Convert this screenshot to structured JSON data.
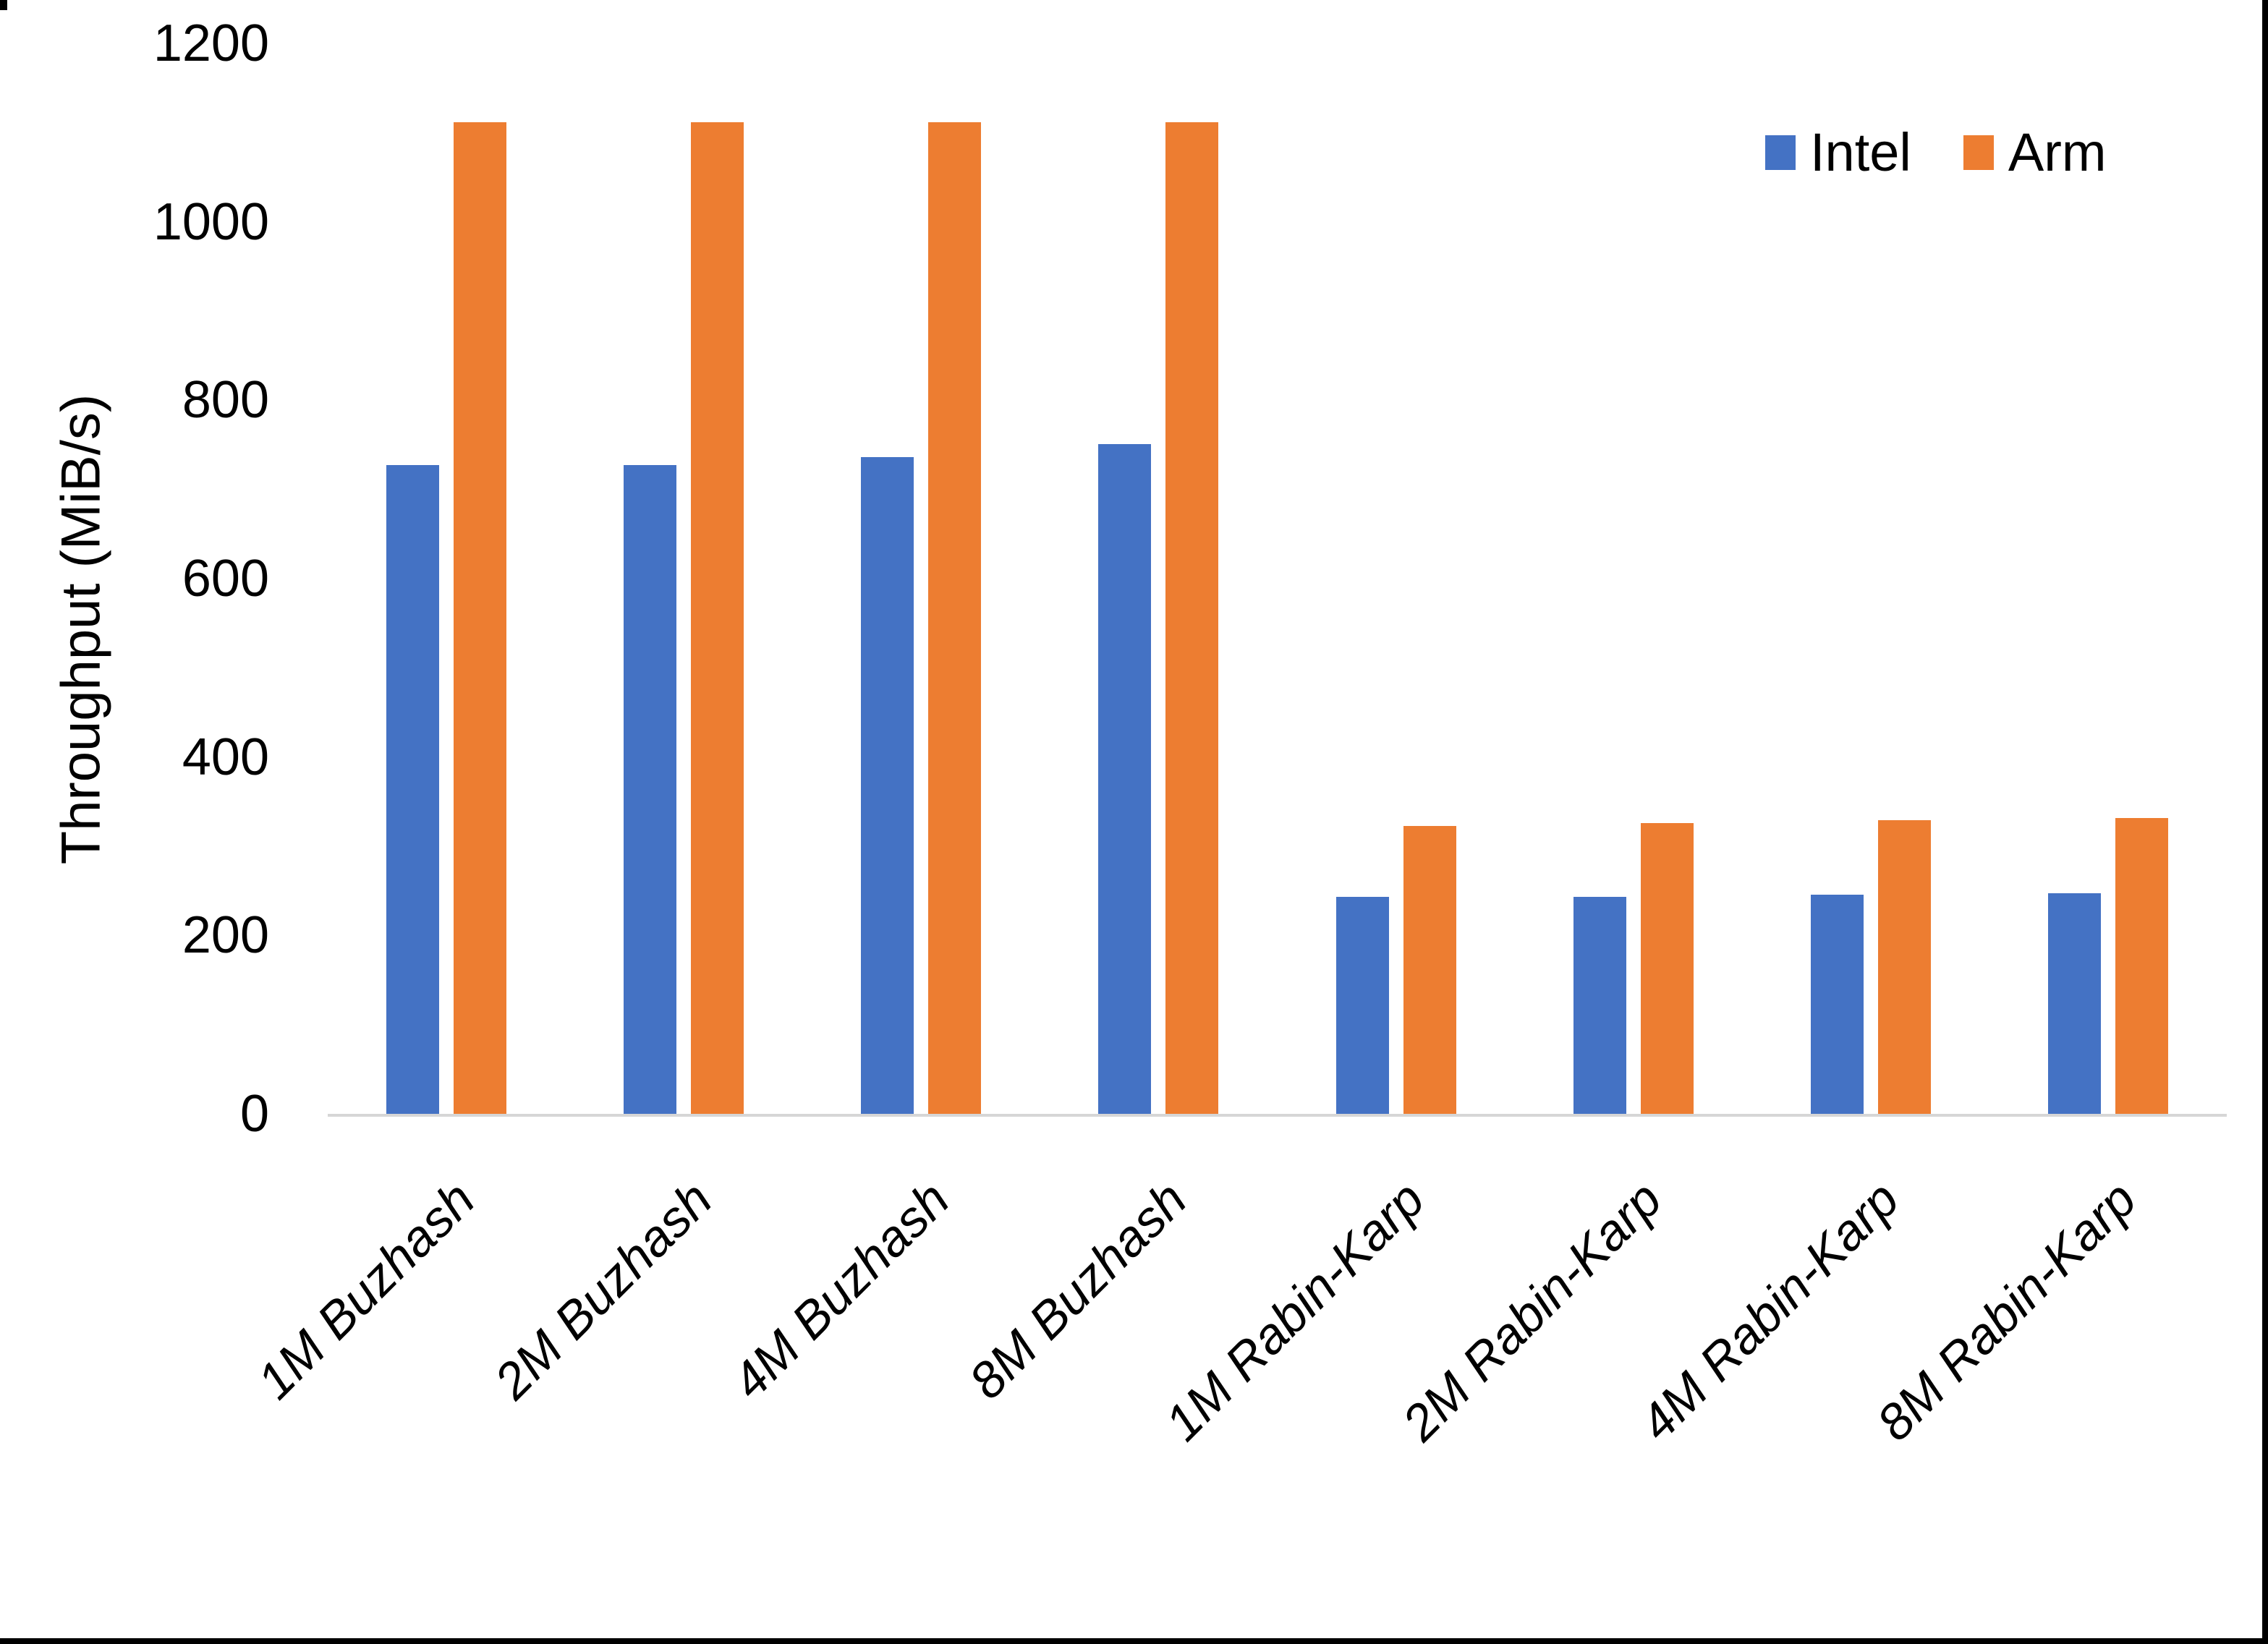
{
  "chart_data": {
    "type": "bar",
    "title": "",
    "xlabel": "",
    "ylabel": "Throughput (MiB/s)",
    "categories": [
      "1M Buzhash",
      "2M Buzhash",
      "4M Buzhash",
      "8M Buzhash",
      "1M Rabin-Karp",
      "2M Rabin-Karp",
      "4M Rabin-Karp",
      "8M Rabin-Karp"
    ],
    "series": [
      {
        "name": "Intel",
        "color": "#4472C4",
        "values": [
          727,
          727,
          736,
          751,
          243,
          243,
          246,
          247
        ]
      },
      {
        "name": "Arm",
        "color": "#ED7D31",
        "values": [
          1112,
          1112,
          1112,
          1112,
          323,
          326,
          329,
          332
        ]
      }
    ],
    "ylim": [
      0,
      1200
    ],
    "yticks": [
      0,
      200,
      400,
      600,
      800,
      1000,
      1200
    ],
    "grid": false,
    "legend_position": "top-right"
  },
  "colors": {
    "background": "#FFFFFF",
    "axis_line": "#D6D6D6",
    "text": "#000000",
    "frame": "#000000"
  }
}
